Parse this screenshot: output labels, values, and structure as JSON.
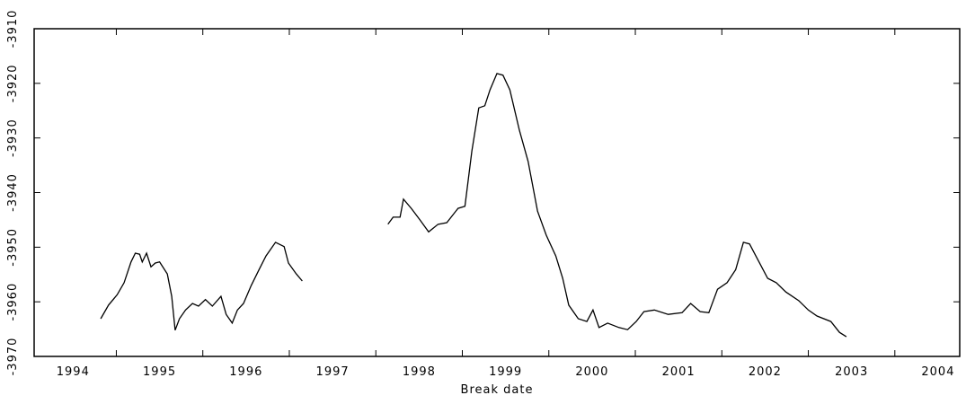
{
  "chart_data": {
    "type": "line",
    "x_label": "Break date",
    "xlim": [
      1994.05,
      2004.75
    ],
    "ylim": [
      -3970,
      -3910
    ],
    "xticks": [
      1994,
      1995,
      1996,
      1997,
      1998,
      1999,
      2000,
      2001,
      2002,
      2003,
      2004
    ],
    "yticks": [
      -3970,
      -3960,
      -3950,
      -3940,
      -3930,
      -3920,
      -3910
    ],
    "x": [
      1994.82,
      1994.91,
      1995.01,
      1995.09,
      1995.17,
      1995.22,
      1995.27,
      1995.3,
      1995.35,
      1995.4,
      1995.45,
      1995.5,
      1995.59,
      1995.64,
      1995.68,
      1995.73,
      1995.8,
      1995.88,
      1995.95,
      1996.03,
      1996.11,
      1996.21,
      1996.27,
      1996.34,
      1996.4,
      1996.47,
      1996.56,
      1996.65,
      1996.73,
      1996.84,
      1996.94,
      1996.99,
      1997.08,
      1997.15,
      1997.6,
      1998.14,
      1998.2,
      1998.28,
      1998.32,
      1998.41,
      1998.51,
      1998.61,
      1998.72,
      1998.82,
      1998.95,
      1999.03,
      1999.11,
      1999.19,
      1999.26,
      1999.32,
      1999.4,
      1999.47,
      1999.55,
      1999.66,
      1999.76,
      1999.87,
      1999.97,
      2000.08,
      2000.16,
      2000.23,
      2000.34,
      2000.44,
      2000.51,
      2000.58,
      2000.68,
      2000.81,
      2000.91,
      2001.01,
      2001.1,
      2001.22,
      2001.38,
      2001.54,
      2001.64,
      2001.75,
      2001.85,
      2001.95,
      2002.06,
      2002.16,
      2002.25,
      2002.32,
      2002.42,
      2002.53,
      2002.63,
      2002.74,
      2002.89,
      2003.0,
      2003.1,
      2003.26,
      2003.36,
      2003.44
    ],
    "series": [
      {
        "color": "#000000",
        "values": [
          -3963.1,
          -3960.6,
          -3958.7,
          -3956.5,
          -3952.7,
          -3951.1,
          -3951.3,
          -3952.7,
          -3951.1,
          -3953.6,
          -3952.9,
          -3952.7,
          -3954.9,
          -3959.0,
          -3965.2,
          -3963.1,
          -3961.5,
          -3960.3,
          -3960.8,
          -3959.6,
          -3960.8,
          -3959.0,
          -3962.3,
          -3963.9,
          -3961.5,
          -3960.3,
          -3957.0,
          -3954.1,
          -3951.6,
          -3949.1,
          -3949.9,
          -3952.9,
          -3954.9,
          -3956.2,
          null,
          -3945.8,
          -3944.5,
          -3944.5,
          -3941.2,
          -3942.9,
          -3945.0,
          -3947.2,
          -3945.8,
          -3945.5,
          -3942.9,
          -3942.5,
          -3932.4,
          -3924.5,
          -3924.1,
          -3921.2,
          -3918.2,
          -3918.5,
          -3921.2,
          -3928.6,
          -3934.3,
          -3943.4,
          -3947.8,
          -3951.6,
          -3955.7,
          -3960.6,
          -3963.1,
          -3963.6,
          -3961.5,
          -3964.7,
          -3963.9,
          -3964.7,
          -3965.1,
          -3963.6,
          -3961.8,
          -3961.5,
          -3962.3,
          -3962.0,
          -3960.3,
          -3961.8,
          -3962.0,
          -3957.7,
          -3956.5,
          -3954.1,
          -3949.1,
          -3949.4,
          -3952.4,
          -3955.7,
          -3956.5,
          -3958.2,
          -3959.8,
          -3961.5,
          -3962.6,
          -3963.6,
          -3965.6,
          -3966.4
        ]
      }
    ]
  }
}
